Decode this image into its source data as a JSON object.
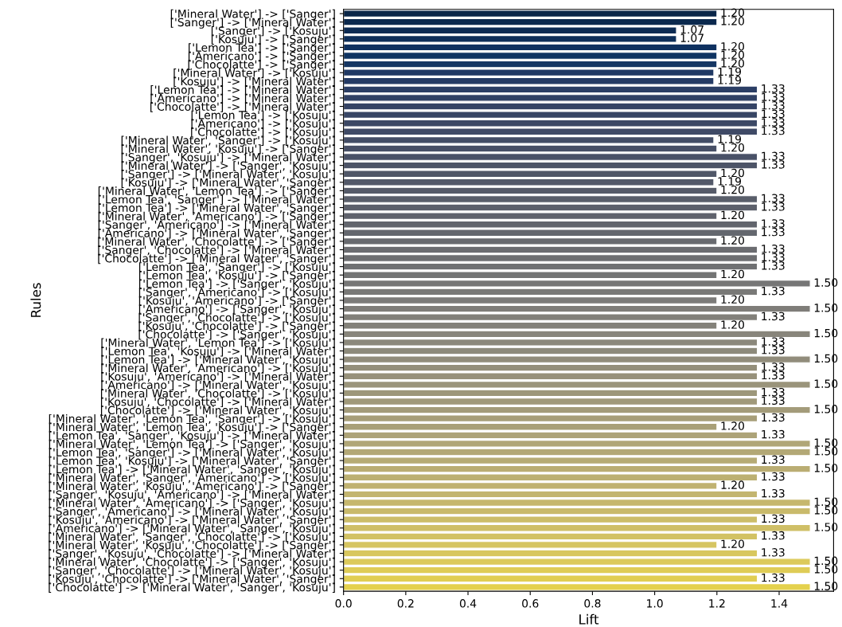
{
  "chart_data": {
    "type": "bar",
    "orientation": "horizontal",
    "xlabel": "Lift",
    "ylabel": "Rules",
    "categories": [
      "['Mineral Water'] -> ['Sanger']",
      "['Sanger'] -> ['Mineral Water']",
      "['Sanger'] -> ['Kosuju']",
      "['Kosuju'] -> ['Sanger']",
      "['Lemon Tea'] -> ['Sanger']",
      "['Americano'] -> ['Sanger']",
      "['Chocolatte'] -> ['Sanger']",
      "['Mineral Water'] -> ['Kosuju']",
      "['Kosuju'] -> ['Mineral Water']",
      "['Lemon Tea'] -> ['Mineral Water']",
      "['Americano'] -> ['Mineral Water']",
      "['Chocolatte'] -> ['Mineral Water']",
      "['Lemon Tea'] -> ['Kosuju']",
      "['Americano'] -> ['Kosuju']",
      "['Chocolatte'] -> ['Kosuju']",
      "['Mineral Water', 'Sanger'] -> ['Kosuju']",
      "['Mineral Water', 'Kosuju'] -> ['Sanger']",
      "['Sanger', 'Kosuju'] -> ['Mineral Water']",
      "['Mineral Water'] -> ['Sanger', 'Kosuju']",
      "['Sanger'] -> ['Mineral Water', 'Kosuju']",
      "['Kosuju'] -> ['Mineral Water', 'Sanger']",
      "['Mineral Water', 'Lemon Tea'] -> ['Sanger']",
      "['Lemon Tea', 'Sanger'] -> ['Mineral Water']",
      "['Lemon Tea'] -> ['Mineral Water', 'Sanger']",
      "['Mineral Water', 'Americano'] -> ['Sanger']",
      "['Sanger', 'Americano'] -> ['Mineral Water']",
      "['Americano'] -> ['Mineral Water', 'Sanger']",
      "['Mineral Water', 'Chocolatte'] -> ['Sanger']",
      "['Sanger', 'Chocolatte'] -> ['Mineral Water']",
      "['Chocolatte'] -> ['Mineral Water', 'Sanger']",
      "['Lemon Tea', 'Sanger'] -> ['Kosuju']",
      "['Lemon Tea', 'Kosuju'] -> ['Sanger']",
      "['Lemon Tea'] -> ['Sanger', 'Kosuju']",
      "['Sanger', 'Americano'] -> ['Kosuju']",
      "['Kosuju', 'Americano'] -> ['Sanger']",
      "['Americano'] -> ['Sanger', 'Kosuju']",
      "['Sanger', 'Chocolatte'] -> ['Kosuju']",
      "['Kosuju', 'Chocolatte'] -> ['Sanger']",
      "['Chocolatte'] -> ['Sanger', 'Kosuju']",
      "['Mineral Water', 'Lemon Tea'] -> ['Kosuju']",
      "['Lemon Tea', 'Kosuju'] -> ['Mineral Water']",
      "['Lemon Tea'] -> ['Mineral Water', 'Kosuju']",
      "['Mineral Water', 'Americano'] -> ['Kosuju']",
      "['Kosuju', 'Americano'] -> ['Mineral Water']",
      "['Americano'] -> ['Mineral Water', 'Kosuju']",
      "['Mineral Water', 'Chocolatte'] -> ['Kosuju']",
      "['Kosuju', 'Chocolatte'] -> ['Mineral Water']",
      "['Chocolatte'] -> ['Mineral Water', 'Kosuju']",
      "['Mineral Water', 'Lemon Tea', 'Sanger'] -> ['Kosuju']",
      "['Mineral Water', 'Lemon Tea', 'Kosuju'] -> ['Sanger']",
      "['Lemon Tea', 'Sanger', 'Kosuju'] -> ['Mineral Water']",
      "['Mineral Water', 'Lemon Tea'] -> ['Sanger', 'Kosuju']",
      "['Lemon Tea', 'Sanger'] -> ['Mineral Water', 'Kosuju']",
      "['Lemon Tea', 'Kosuju'] -> ['Mineral Water', 'Sanger']",
      "['Lemon Tea'] -> ['Mineral Water', 'Sanger', 'Kosuju']",
      "['Mineral Water', 'Sanger', 'Americano'] -> ['Kosuju']",
      "['Mineral Water', 'Kosuju', 'Americano'] -> ['Sanger']",
      "['Sanger', 'Kosuju', 'Americano'] -> ['Mineral Water']",
      "['Mineral Water', 'Americano'] -> ['Sanger', 'Kosuju']",
      "['Sanger', 'Americano'] -> ['Mineral Water', 'Kosuju']",
      "['Kosuju', 'Americano'] -> ['Mineral Water', 'Sanger']",
      "['Americano'] -> ['Mineral Water', 'Sanger', 'Kosuju']",
      "['Mineral Water', 'Sanger', 'Chocolatte'] -> ['Kosuju']",
      "['Mineral Water', 'Kosuju', 'Chocolatte'] -> ['Sanger']",
      "['Sanger', 'Kosuju', 'Chocolatte'] -> ['Mineral Water']",
      "['Mineral Water', 'Chocolatte'] -> ['Sanger', 'Kosuju']",
      "['Sanger', 'Chocolatte'] -> ['Mineral Water', 'Kosuju']",
      "['Kosuju', 'Chocolatte'] -> ['Mineral Water', 'Sanger']",
      "['Chocolatte'] -> ['Mineral Water', 'Sanger', 'Kosuju']"
    ],
    "values": [
      1.2,
      1.2,
      1.07,
      1.07,
      1.2,
      1.2,
      1.2,
      1.19,
      1.19,
      1.33,
      1.33,
      1.33,
      1.33,
      1.33,
      1.33,
      1.19,
      1.2,
      1.33,
      1.33,
      1.2,
      1.19,
      1.2,
      1.33,
      1.33,
      1.2,
      1.33,
      1.33,
      1.2,
      1.33,
      1.33,
      1.33,
      1.2,
      1.5,
      1.33,
      1.2,
      1.5,
      1.33,
      1.2,
      1.5,
      1.33,
      1.33,
      1.5,
      1.33,
      1.33,
      1.5,
      1.33,
      1.33,
      1.5,
      1.33,
      1.2,
      1.33,
      1.5,
      1.5,
      1.33,
      1.5,
      1.33,
      1.2,
      1.33,
      1.5,
      1.5,
      1.33,
      1.5,
      1.33,
      1.2,
      1.33,
      1.5,
      1.5,
      1.33,
      1.5
    ],
    "value_labels": [
      "1.20",
      "1.20",
      "1.07",
      "1.07",
      "1.20",
      "1.20",
      "1.20",
      "1.19",
      "1.19",
      "1.33",
      "1.33",
      "1.33",
      "1.33",
      "1.33",
      "1.33",
      "1.19",
      "1.20",
      "1.33",
      "1.33",
      "1.20",
      "1.19",
      "1.20",
      "1.33",
      "1.33",
      "1.20",
      "1.33",
      "1.33",
      "1.20",
      "1.33",
      "1.33",
      "1.33",
      "1.20",
      "1.50",
      "1.33",
      "1.20",
      "1.50",
      "1.33",
      "1.20",
      "1.50",
      "1.33",
      "1.33",
      "1.50",
      "1.33",
      "1.33",
      "1.50",
      "1.33",
      "1.33",
      "1.50",
      "1.33",
      "1.20",
      "1.33",
      "1.50",
      "1.50",
      "1.33",
      "1.50",
      "1.33",
      "1.20",
      "1.33",
      "1.50",
      "1.50",
      "1.33",
      "1.50",
      "1.33",
      "1.20",
      "1.33",
      "1.50",
      "1.50",
      "1.33",
      "1.50"
    ],
    "colors": [
      "#0a2648",
      "#0b294e",
      "#0c2b53",
      "#0d2e59",
      "#0e3160",
      "#0e3362",
      "#153663",
      "#203964",
      "#253b65",
      "#2b3e65",
      "#304165",
      "#344365",
      "#384665",
      "#3c4865",
      "#3f4a66",
      "#434d66",
      "#474f66",
      "#495167",
      "#4d5467",
      "#505768",
      "#535969",
      "#565b69",
      "#595e6a",
      "#5c606b",
      "#5f626c",
      "#62656d",
      "#64676e",
      "#686a6f",
      "#6b6c70",
      "#6d6e71",
      "#707173",
      "#737474",
      "#767676",
      "#797977",
      "#7c7b79",
      "#7f7d79",
      "#82807a",
      "#84827a",
      "#88857b",
      "#8b887b",
      "#8d8a7b",
      "#918c7b",
      "#948f7b",
      "#97917b",
      "#9a947b",
      "#9d977a",
      "#a0997a",
      "#a39b7a",
      "#a79e79",
      "#a9a078",
      "#ada378",
      "#b0a677",
      "#b3a876",
      "#b6ab75",
      "#baad73",
      "#bcb072",
      "#c0b271",
      "#c3b56f",
      "#c6b76d",
      "#c9ba6b",
      "#ccbd69",
      "#cfbf67",
      "#d2c264",
      "#d6c561",
      "#d8c75e",
      "#dcca5b",
      "#dfcc56",
      "#e1ce52",
      "#e4d14d"
    ],
    "xlim": [
      0,
      1.575
    ],
    "xticks": [
      {
        "value": 0,
        "label": "0.0"
      },
      0.2,
      0.4,
      0.6,
      0.8,
      {
        "value": 1,
        "label": "1.0"
      },
      1.2,
      1.4
    ],
    "grid": false,
    "legend": false
  }
}
